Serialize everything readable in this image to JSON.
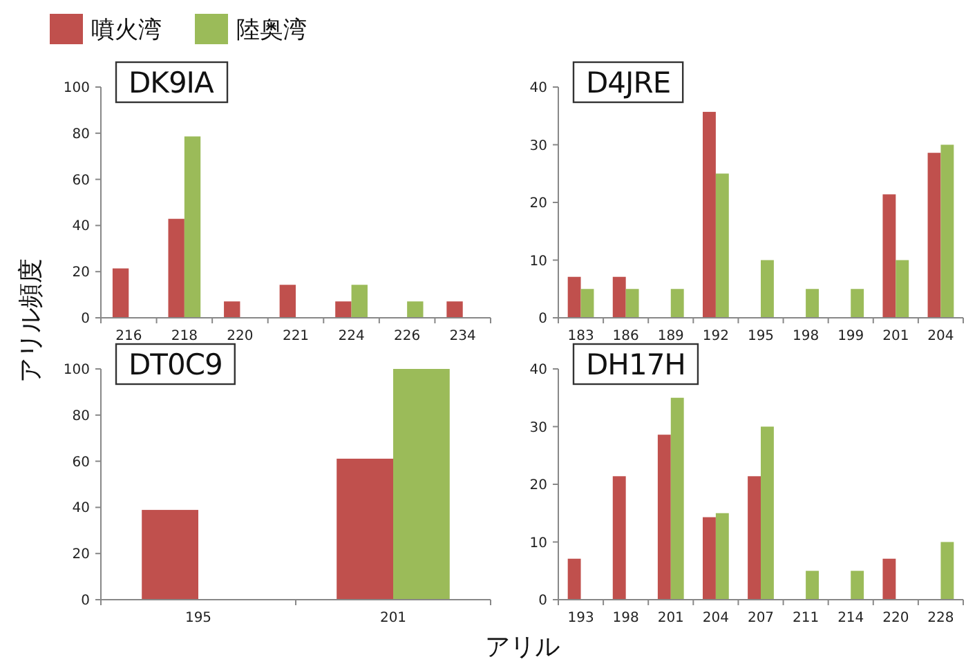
{
  "chart_data": [
    {
      "type": "bar",
      "title": "DK9IA",
      "ylabel": "アリル頻度",
      "legend": "top",
      "categories": [
        "216",
        "218",
        "220",
        "221",
        "224",
        "226",
        "234"
      ],
      "ylim": [
        0,
        100
      ],
      "yticks": [
        0,
        20,
        40,
        60,
        80,
        100
      ],
      "series": [
        {
          "name": "噴火湾",
          "color": "#c0504d",
          "values": [
            21.4,
            42.9,
            7.1,
            14.3,
            7.1,
            null,
            7.1
          ]
        },
        {
          "name": "陸奥湾",
          "color": "#9bbb59",
          "values": [
            null,
            78.6,
            null,
            null,
            14.3,
            7.1,
            null
          ]
        }
      ]
    },
    {
      "type": "bar",
      "title": "D4JRE",
      "categories": [
        "183",
        "186",
        "189",
        "192",
        "195",
        "198",
        "199",
        "201",
        "204"
      ],
      "ylim": [
        0,
        40
      ],
      "yticks": [
        0,
        10,
        20,
        30,
        40
      ],
      "series": [
        {
          "color": "#c0504d",
          "values": [
            7.1,
            7.1,
            null,
            35.7,
            null,
            null,
            null,
            21.4,
            28.6
          ]
        },
        {
          "color": "#9bbb59",
          "values": [
            5,
            5,
            5,
            25,
            10,
            5,
            5,
            10,
            30
          ]
        }
      ]
    },
    {
      "type": "bar",
      "title": "DT0C9",
      "xlabel": "アリル",
      "categories": [
        "195",
        "201"
      ],
      "ylim": [
        0,
        100
      ],
      "yticks": [
        0,
        20,
        40,
        60,
        80,
        100
      ],
      "series": [
        {
          "color": "#c0504d",
          "values": [
            38.9,
            61.1
          ]
        },
        {
          "color": "#9bbb59",
          "values": [
            null,
            100
          ]
        }
      ]
    },
    {
      "type": "bar",
      "title": "DH17H",
      "categories": [
        "193",
        "198",
        "201",
        "204",
        "207",
        "211",
        "214",
        "220",
        "228"
      ],
      "ylim": [
        0,
        40
      ],
      "yticks": [
        0,
        10,
        20,
        30,
        40
      ],
      "series": [
        {
          "color": "#c0504d",
          "values": [
            7.1,
            21.4,
            28.6,
            14.3,
            21.4,
            null,
            null,
            7.1,
            null
          ]
        },
        {
          "color": "#9bbb59",
          "values": [
            null,
            null,
            35,
            15,
            30,
            5,
            5,
            null,
            10
          ]
        }
      ]
    }
  ]
}
